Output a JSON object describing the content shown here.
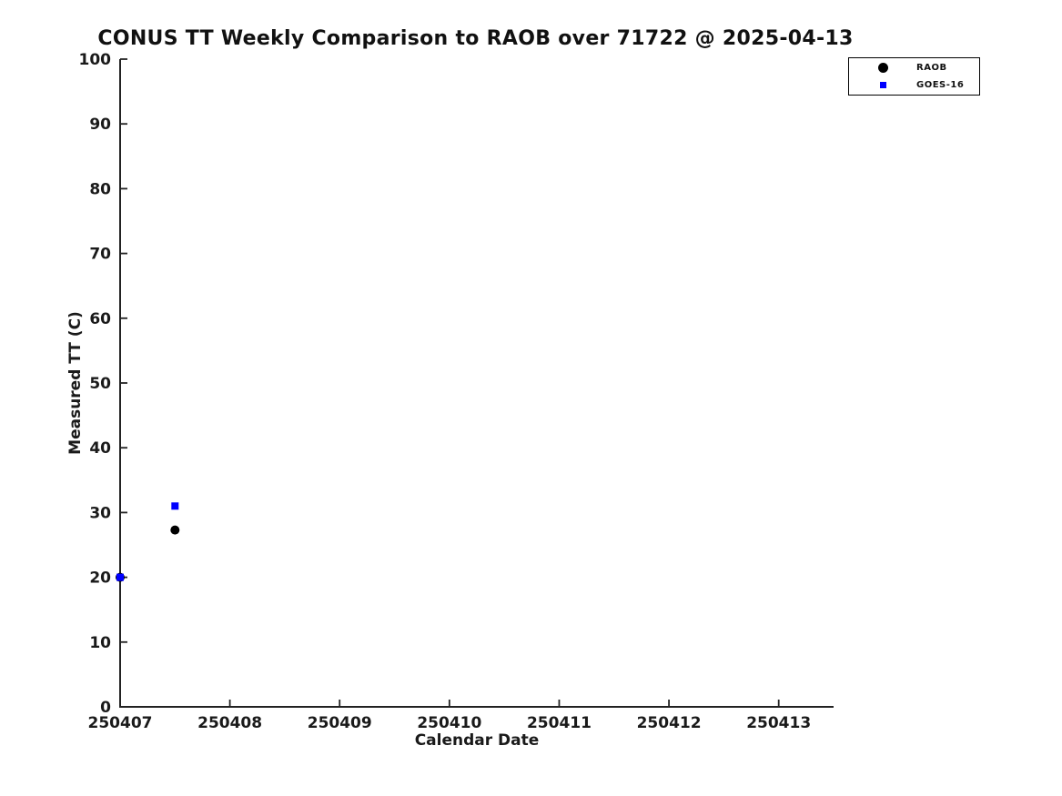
{
  "chart_data": {
    "type": "scatter",
    "title": "CONUS TT Weekly Comparison to RAOB over 71722 @ 2025-04-13",
    "xlabel": "Calendar Date",
    "ylabel": "Measured TT (C)",
    "xlim": [
      250407,
      250413.5
    ],
    "ylim": [
      0,
      100
    ],
    "x_ticks": [
      250407,
      250408,
      250409,
      250410,
      250411,
      250412,
      250413
    ],
    "x_tick_labels": [
      "250407",
      "250408",
      "250409",
      "250410",
      "250411",
      "250412",
      "250413"
    ],
    "y_ticks": [
      0,
      10,
      20,
      30,
      40,
      50,
      60,
      70,
      80,
      90,
      100
    ],
    "y_tick_labels": [
      "0",
      "10",
      "20",
      "30",
      "40",
      "50",
      "60",
      "70",
      "80",
      "90",
      "100"
    ],
    "grid": false,
    "legend_position": "upper-right-outside-plot",
    "colors": {
      "text": "#1a1a1a",
      "spine": "#222222",
      "raob": "#000000",
      "goes16": "#0000ff"
    },
    "series": [
      {
        "name": "RAOB",
        "marker": "circle",
        "color": "#000000",
        "marker_size": 10,
        "points": [
          [
            250407,
            20
          ],
          [
            250407.5,
            27.3
          ]
        ]
      },
      {
        "name": "GOES-16",
        "marker": "square",
        "color": "#0000ff",
        "marker_size": 8,
        "points": [
          [
            250407,
            20
          ],
          [
            250407.5,
            31
          ]
        ]
      }
    ]
  }
}
